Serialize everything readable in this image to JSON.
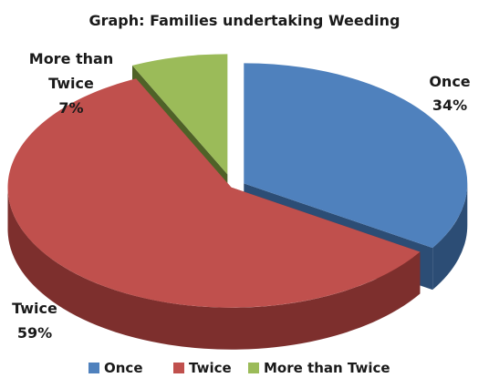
{
  "chart_data": {
    "type": "pie",
    "title": "Graph: Families undertaking Weeding",
    "categories": [
      "Once",
      "Twice",
      "More than Twice"
    ],
    "values": [
      34,
      59,
      7
    ],
    "unit": "%",
    "colors": [
      "#4f81bd",
      "#c0504d",
      "#9bbb59"
    ],
    "side_colors": [
      "#2c4d75",
      "#7d2f2d",
      "#4f6228"
    ],
    "exploded": true,
    "three_d": true,
    "data_labels": [
      {
        "category": "Once",
        "value_text": "34%"
      },
      {
        "category": "Twice",
        "value_text": "59%"
      },
      {
        "category": "More than Twice",
        "value_text": "7%"
      }
    ],
    "legend": {
      "placement": "bottom",
      "entries": [
        "Once",
        "Twice",
        "More than Twice"
      ]
    }
  }
}
